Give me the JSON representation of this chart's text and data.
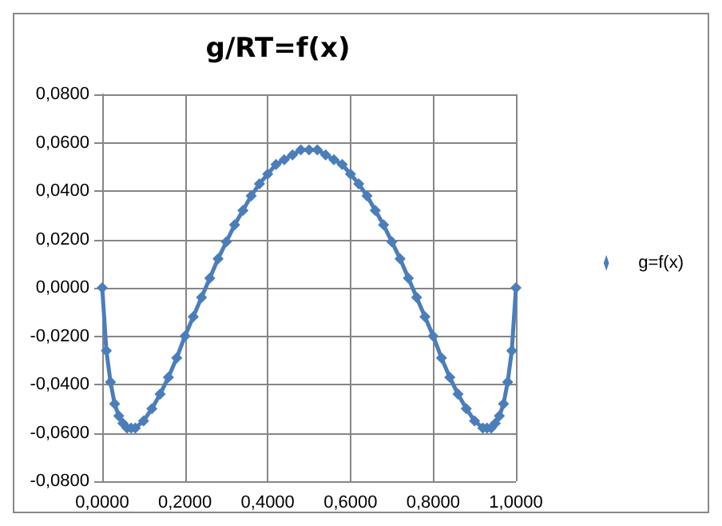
{
  "chart_data": {
    "type": "line",
    "title": "g/RT=f(x)",
    "x": [
      0,
      0.01,
      0.02,
      0.03,
      0.04,
      0.05,
      0.06,
      0.07,
      0.08,
      0.1,
      0.12,
      0.14,
      0.16,
      0.18,
      0.2,
      0.22,
      0.24,
      0.26,
      0.28,
      0.3,
      0.32,
      0.34,
      0.36,
      0.38,
      0.4,
      0.42,
      0.44,
      0.46,
      0.48,
      0.5,
      0.52,
      0.54,
      0.56,
      0.58,
      0.6,
      0.62,
      0.64,
      0.66,
      0.68,
      0.7,
      0.72,
      0.74,
      0.76,
      0.78,
      0.8,
      0.82,
      0.84,
      0.86,
      0.88,
      0.9,
      0.92,
      0.93,
      0.94,
      0.95,
      0.96,
      0.97,
      0.98,
      0.99,
      1.0
    ],
    "series": [
      {
        "name": "g=f(x)",
        "color": "#4a7ebb",
        "values": [
          0,
          -0.026,
          -0.039,
          -0.048,
          -0.053,
          -0.056,
          -0.058,
          -0.058,
          -0.058,
          -0.055,
          -0.05,
          -0.044,
          -0.037,
          -0.029,
          -0.02,
          -0.012,
          -0.004,
          0.004,
          0.012,
          0.019,
          0.026,
          0.032,
          0.038,
          0.043,
          0.047,
          0.051,
          0.053,
          0.055,
          0.057,
          0.057,
          0.057,
          0.055,
          0.053,
          0.051,
          0.047,
          0.043,
          0.038,
          0.032,
          0.026,
          0.019,
          0.012,
          0.004,
          -0.004,
          -0.012,
          -0.02,
          -0.029,
          -0.037,
          -0.044,
          -0.05,
          -0.055,
          -0.058,
          -0.058,
          -0.058,
          -0.056,
          -0.053,
          -0.048,
          -0.039,
          -0.026,
          0
        ]
      }
    ],
    "xlim": [
      0,
      1
    ],
    "xticks": [
      {
        "value": 0,
        "label": "0,0000"
      },
      {
        "value": 0.2,
        "label": "0,2000"
      },
      {
        "value": 0.4,
        "label": "0,4000"
      },
      {
        "value": 0.6,
        "label": "0,6000"
      },
      {
        "value": 0.8,
        "label": "0,8000"
      },
      {
        "value": 1,
        "label": "1,0000"
      }
    ],
    "ylim": [
      -0.08,
      0.08
    ],
    "yticks": [
      {
        "value": -0.08,
        "label": "-0,0800"
      },
      {
        "value": -0.06,
        "label": "-0,0600"
      },
      {
        "value": -0.04,
        "label": "-0,0400"
      },
      {
        "value": -0.02,
        "label": "-0,0200"
      },
      {
        "value": 0,
        "label": "0,0000"
      },
      {
        "value": 0.02,
        "label": "0,0200"
      },
      {
        "value": 0.04,
        "label": "0,0400"
      },
      {
        "value": 0.06,
        "label": "0,0600"
      },
      {
        "value": 0.08,
        "label": "0,0800"
      }
    ],
    "grid": true,
    "legend": "right",
    "marker": "diamond",
    "line_style": "solid"
  }
}
